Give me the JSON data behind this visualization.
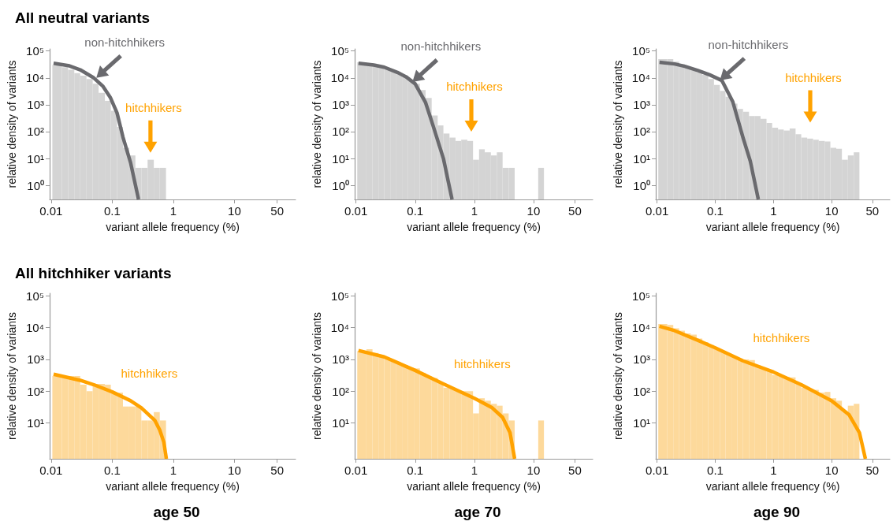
{
  "chart_data": [
    {
      "type": "histogram",
      "title": "All neutral variants",
      "xlabel": "variant allele frequency (%)",
      "ylabel": "relative density of variants",
      "log": "xy",
      "xlim": [
        0.0095,
        100
      ],
      "xticks": [
        0.01,
        0.1,
        1,
        10,
        50
      ],
      "ylim": [
        0.3,
        120000
      ],
      "yticks": [
        {
          "value": 1,
          "label": "10⁰"
        },
        {
          "value": 10,
          "label": "10¹"
        },
        {
          "value": 100,
          "label": "10²"
        },
        {
          "value": 1000,
          "label": "10³"
        },
        {
          "value": 10000,
          "label": "10⁴"
        },
        {
          "value": 100000,
          "label": "10⁵"
        }
      ],
      "annotations": [
        {
          "text": "non-hitchhikers",
          "x": 0.055,
          "y": 10000
        },
        "hitchhikers"
      ],
      "series": [
        {
          "color": "#d4d4d4",
          "bins": [
            0.0105,
            0.015,
            0.019,
            0.024,
            0.03,
            0.038,
            0.048,
            0.06,
            0.076,
            0.095,
            0.12,
            0.15,
            0.19,
            0.24,
            0.3,
            0.38,
            0.48,
            0.6,
            0.76
          ],
          "values": [
            30000,
            25000,
            20000,
            15000,
            12000,
            9000,
            6000,
            2800,
            1400,
            600,
            150,
            25,
            13,
            4.5,
            4.5,
            9,
            4.5,
            4.5
          ]
        },
        {
          "type": "line",
          "color": "#6a6a6e",
          "x": [
            0.011,
            0.02,
            0.03,
            0.05,
            0.07,
            0.093,
            0.12,
            0.15,
            0.2,
            0.27
          ],
          "values": [
            35000,
            28000,
            20000,
            10000,
            5000,
            1900,
            500,
            63,
            7,
            0.3
          ]
        }
      ]
    },
    {
      "type": "histogram",
      "xlabel": "variant allele frequency (%)",
      "ylabel": "relative density of variants",
      "log": "xy",
      "xlim": [
        0.0095,
        100
      ],
      "xticks": [
        0.01,
        0.1,
        1,
        10,
        50
      ],
      "ylim": [
        0.3,
        120000
      ],
      "yticks": [
        {
          "value": 1,
          "label": "10⁰"
        },
        {
          "value": 10,
          "label": "10¹"
        },
        {
          "value": 100,
          "label": "10²"
        },
        {
          "value": 1000,
          "label": "10³"
        },
        {
          "value": 10000,
          "label": "10⁴"
        },
        {
          "value": 100000,
          "label": "10⁵"
        }
      ],
      "annotations": [
        {
          "text": "non-hitchhikers",
          "x": 0.09,
          "y": 7000
        },
        "hitchhikers"
      ],
      "series": [
        {
          "color": "#d4d4d4",
          "bins": [
            0.0105,
            0.015,
            0.019,
            0.024,
            0.03,
            0.038,
            0.048,
            0.06,
            0.076,
            0.095,
            0.12,
            0.15,
            0.19,
            0.24,
            0.3,
            0.38,
            0.48,
            0.6,
            0.76,
            0.95,
            1.2,
            1.5,
            1.9,
            2.4,
            3,
            3.8,
            4.8,
            12,
            15
          ],
          "values": [
            38000,
            34000,
            30000,
            26000,
            22000,
            18000,
            15000,
            11000,
            7500,
            6000,
            3500,
            1800,
            400,
            170,
            85,
            60,
            45,
            50,
            45,
            9,
            22,
            17,
            13,
            17,
            4.5,
            4.5,
            null,
            4.5
          ]
        },
        {
          "type": "line",
          "color": "#6a6a6e",
          "x": [
            0.011,
            0.02,
            0.03,
            0.05,
            0.07,
            0.1,
            0.15,
            0.2,
            0.3,
            0.42
          ],
          "values": [
            35000,
            30000,
            25000,
            16000,
            11000,
            6000,
            1200,
            170,
            10,
            0.3
          ]
        }
      ]
    },
    {
      "type": "histogram",
      "xlabel": "variant allele frequency (%)",
      "ylabel": "relative density of variants",
      "log": "xy",
      "xlim": [
        0.0095,
        100
      ],
      "xticks": [
        0.01,
        0.1,
        1,
        10,
        50
      ],
      "ylim": [
        0.3,
        120000
      ],
      "yticks": [
        {
          "value": 1,
          "label": "10⁰"
        },
        {
          "value": 10,
          "label": "10¹"
        },
        {
          "value": 100,
          "label": "10²"
        },
        {
          "value": 1000,
          "label": "10³"
        },
        {
          "value": 10000,
          "label": "10⁴"
        },
        {
          "value": 100000,
          "label": "10⁵"
        }
      ],
      "annotations": [
        {
          "text": "non-hitchhikers",
          "x": 0.12,
          "y": 8000
        },
        "hitchhikers"
      ],
      "series": [
        {
          "color": "#d4d4d4",
          "bins": [
            0.0105,
            0.015,
            0.019,
            0.024,
            0.03,
            0.038,
            0.048,
            0.06,
            0.076,
            0.095,
            0.12,
            0.15,
            0.19,
            0.24,
            0.3,
            0.38,
            0.48,
            0.6,
            0.76,
            0.95,
            1.2,
            1.5,
            1.9,
            2.4,
            3,
            3.8,
            4.8,
            6,
            7.6,
            9.5,
            12,
            15,
            19,
            24,
            30
          ],
          "values": [
            50000,
            50000,
            40000,
            32000,
            25000,
            20000,
            16000,
            13000,
            9000,
            5500,
            3300,
            2000,
            1100,
            700,
            550,
            380,
            380,
            300,
            210,
            140,
            120,
            110,
            130,
            80,
            60,
            55,
            50,
            45,
            43,
            25,
            23,
            9,
            13,
            17
          ]
        },
        {
          "type": "line",
          "color": "#6a6a6e",
          "x": [
            0.011,
            0.02,
            0.03,
            0.05,
            0.08,
            0.13,
            0.2,
            0.3,
            0.4,
            0.55
          ],
          "values": [
            38000,
            33000,
            27000,
            19000,
            13000,
            8000,
            1300,
            60,
            8,
            0.3
          ]
        }
      ]
    },
    {
      "type": "histogram",
      "title": "All hitchhiker variants",
      "subtitle": "age 50",
      "xlabel": "variant allele frequency (%)",
      "ylabel": "relative density of variants",
      "log": "xy",
      "xlim": [
        0.0095,
        100
      ],
      "xticks": [
        0.01,
        0.1,
        1,
        10,
        50
      ],
      "ylim": [
        0.75,
        120000
      ],
      "yticks": [
        {
          "value": 10,
          "label": "10¹"
        },
        {
          "value": 100,
          "label": "10²"
        },
        {
          "value": 1000,
          "label": "10³"
        },
        {
          "value": 10000,
          "label": "10⁴"
        },
        {
          "value": 100000,
          "label": "10⁵"
        }
      ],
      "series": [
        {
          "color": "#fdd99b",
          "bins": [
            0.0105,
            0.015,
            0.019,
            0.024,
            0.03,
            0.038,
            0.048,
            0.06,
            0.076,
            0.095,
            0.12,
            0.15,
            0.19,
            0.24,
            0.3,
            0.38,
            0.48,
            0.6,
            0.76
          ],
          "values": [
            300,
            300,
            300,
            300,
            160,
            100,
            170,
            170,
            160,
            90,
            90,
            33,
            33,
            33,
            12,
            12,
            22,
            12
          ]
        },
        {
          "type": "line",
          "name": "hitchhikers",
          "color": "#ffa200",
          "x": [
            0.011,
            0.03,
            0.05,
            0.1,
            0.2,
            0.3,
            0.5,
            0.6,
            0.7,
            0.77
          ],
          "values": [
            340,
            220,
            160,
            95,
            50,
            30,
            12,
            6,
            2.5,
            0.75
          ]
        }
      ]
    },
    {
      "type": "histogram",
      "subtitle": "age 70",
      "xlabel": "variant allele frequency (%)",
      "ylabel": "relative density of variants",
      "log": "xy",
      "xlim": [
        0.0095,
        100
      ],
      "xticks": [
        0.01,
        0.1,
        1,
        10,
        50
      ],
      "ylim": [
        0.75,
        120000
      ],
      "yticks": [
        {
          "value": 10,
          "label": "10¹"
        },
        {
          "value": 100,
          "label": "10²"
        },
        {
          "value": 1000,
          "label": "10³"
        },
        {
          "value": 10000,
          "label": "10⁴"
        },
        {
          "value": 100000,
          "label": "10⁵"
        }
      ],
      "series": [
        {
          "color": "#fdd99b",
          "bins": [
            0.0105,
            0.015,
            0.019,
            0.024,
            0.03,
            0.038,
            0.048,
            0.06,
            0.076,
            0.095,
            0.12,
            0.15,
            0.19,
            0.24,
            0.3,
            0.38,
            0.48,
            0.6,
            0.76,
            0.95,
            1.2,
            1.5,
            1.9,
            2.4,
            3,
            3.8,
            4.8,
            12,
            15
          ],
          "values": [
            1800,
            2100,
            1600,
            1300,
            1100,
            900,
            750,
            650,
            550,
            520,
            380,
            300,
            260,
            180,
            130,
            120,
            100,
            100,
            100,
            20,
            60,
            50,
            40,
            35,
            20,
            12,
            null,
            12
          ]
        },
        {
          "type": "line",
          "name": "hitchhikers",
          "color": "#ffa200",
          "x": [
            0.011,
            0.03,
            0.1,
            0.3,
            1,
            2,
            3,
            4,
            4.8
          ],
          "values": [
            1900,
            1200,
            450,
            170,
            60,
            30,
            15,
            5,
            0.75
          ]
        }
      ]
    },
    {
      "type": "histogram",
      "subtitle": "age 90",
      "xlabel": "variant allele frequency (%)",
      "ylabel": "relative density of variants",
      "log": "xy",
      "xlim": [
        0.0095,
        100
      ],
      "xticks": [
        0.01,
        0.1,
        1,
        10,
        50
      ],
      "ylim": [
        0.75,
        120000
      ],
      "yticks": [
        {
          "value": 10,
          "label": "10¹"
        },
        {
          "value": 100,
          "label": "10²"
        },
        {
          "value": 1000,
          "label": "10³"
        },
        {
          "value": 10000,
          "label": "10⁴"
        },
        {
          "value": 100000,
          "label": "10⁵"
        }
      ],
      "series": [
        {
          "color": "#fdd99b",
          "bins": [
            0.0105,
            0.015,
            0.019,
            0.024,
            0.03,
            0.038,
            0.048,
            0.06,
            0.076,
            0.095,
            0.12,
            0.15,
            0.19,
            0.24,
            0.3,
            0.38,
            0.48,
            0.6,
            0.76,
            0.95,
            1.2,
            1.5,
            1.9,
            2.4,
            3,
            3.8,
            4.8,
            6,
            7.6,
            9.5,
            12,
            15,
            19,
            24,
            30
          ],
          "values": [
            13000,
            12000,
            9500,
            8000,
            6500,
            6000,
            4500,
            3500,
            2800,
            2200,
            1800,
            1500,
            1200,
            1000,
            1000,
            950,
            650,
            500,
            450,
            320,
            300,
            280,
            270,
            180,
            130,
            120,
            110,
            90,
            95,
            60,
            50,
            23,
            35,
            40
          ]
        },
        {
          "type": "line",
          "name": "hitchhikers",
          "color": "#ffa200",
          "x": [
            0.011,
            0.02,
            0.05,
            0.1,
            0.3,
            1,
            3,
            10,
            20,
            30,
            38
          ],
          "values": [
            11000,
            8000,
            4000,
            2300,
            900,
            400,
            160,
            50,
            18,
            5,
            0.75
          ]
        }
      ]
    }
  ]
}
